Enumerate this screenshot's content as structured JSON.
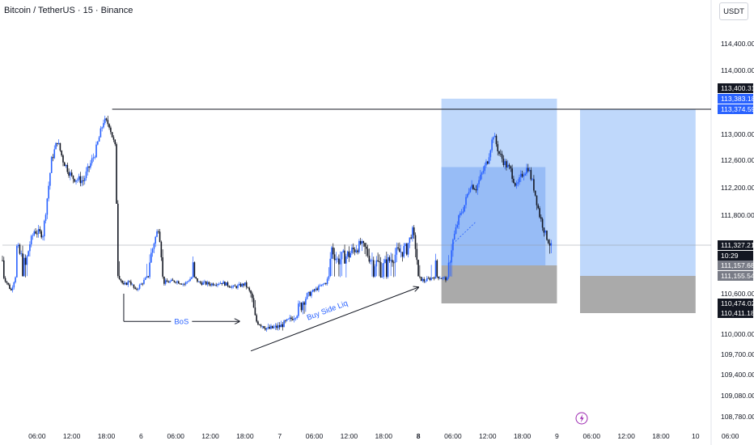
{
  "header": {
    "title": "Bitcoin / TetherUS · 15 · Binance",
    "unit_badge": "USDT"
  },
  "chart_data": {
    "type": "candlestick",
    "title": "Bitcoin / TetherUS · 15 · Binance",
    "y_unit": "USDT",
    "ylim": [
      108600,
      114700
    ],
    "y_ticks": [
      114400,
      114000,
      113000,
      112600,
      112200,
      111800,
      110600,
      110000,
      109700,
      109400,
      109080,
      108780
    ],
    "y_tick_labels": [
      "114,400.00",
      "114,000.00",
      "113,000.00",
      "112,600.00",
      "112,200.00",
      "111,800.00",
      "110,600.00",
      "110,000.00",
      "109,700.00",
      "109,400.00",
      "109,080.00",
      "108,780.00"
    ],
    "x_tick_labels": [
      "06:00",
      "12:00",
      "18:00",
      "6",
      "06:00",
      "12:00",
      "18:00",
      "7",
      "06:00",
      "12:00",
      "18:00",
      "8",
      "06:00",
      "12:00",
      "18:00",
      "9",
      "06:00",
      "12:00",
      "18:00",
      "10",
      "06:00"
    ],
    "x_tick_hours": [
      6,
      12,
      18,
      24,
      30,
      36,
      42,
      48,
      54,
      60,
      66,
      72,
      78,
      84,
      90,
      96,
      102,
      108,
      114,
      120,
      126
    ],
    "bold_ticks": [
      "8"
    ],
    "price_path": [
      [
        0,
        111200
      ],
      [
        1.5,
        110700
      ],
      [
        2.5,
        111300
      ],
      [
        4,
        111150
      ],
      [
        5.5,
        111550
      ],
      [
        7,
        111500
      ],
      [
        8.5,
        112600
      ],
      [
        9.5,
        112900
      ],
      [
        10.5,
        112600
      ],
      [
        12,
        112350
      ],
      [
        14,
        112300
      ],
      [
        16,
        112700
      ],
      [
        17.5,
        113200
      ],
      [
        18.5,
        113150
      ],
      [
        19.5,
        112800
      ],
      [
        20,
        111200
      ],
      [
        21,
        110850
      ],
      [
        22,
        111000
      ],
      [
        23,
        110700
      ],
      [
        24.5,
        111000
      ],
      [
        26,
        111300
      ],
      [
        27,
        111600
      ],
      [
        28,
        110950
      ],
      [
        30,
        111000
      ],
      [
        31.5,
        110900
      ],
      [
        33,
        111150
      ],
      [
        34,
        110950
      ],
      [
        36,
        110900
      ],
      [
        38,
        110950
      ],
      [
        40,
        110800
      ],
      [
        42,
        110900
      ],
      [
        43,
        110600
      ],
      [
        44,
        110250
      ],
      [
        46,
        110100
      ],
      [
        48,
        110150
      ],
      [
        50,
        110300
      ],
      [
        52,
        110500
      ],
      [
        54,
        110700
      ],
      [
        56,
        110950
      ],
      [
        57,
        111300
      ],
      [
        58,
        111200
      ],
      [
        60,
        111250
      ],
      [
        62,
        111350
      ],
      [
        64,
        111200
      ],
      [
        66,
        111150
      ],
      [
        68,
        111250
      ],
      [
        70,
        111300
      ],
      [
        71,
        111550
      ],
      [
        72,
        111100
      ],
      [
        73,
        111000
      ],
      [
        75,
        111150
      ],
      [
        77,
        111050
      ],
      [
        78,
        111400
      ],
      [
        79,
        111750
      ],
      [
        80,
        111950
      ],
      [
        81,
        112250
      ],
      [
        82,
        112200
      ],
      [
        83,
        112400
      ],
      [
        84,
        112600
      ],
      [
        85,
        113000
      ],
      [
        86,
        112700
      ],
      [
        87,
        112550
      ],
      [
        88,
        112450
      ],
      [
        89,
        112200
      ],
      [
        90,
        112400
      ],
      [
        91,
        112500
      ],
      [
        92,
        112200
      ],
      [
        93,
        111800
      ],
      [
        94,
        111500
      ],
      [
        95,
        111300
      ]
    ],
    "horizontal_lines": [
      {
        "price": 113374.59,
        "from_hour": 19
      },
      {
        "price": 111327.21,
        "from_hour": 0,
        "style": "thin"
      }
    ],
    "position_boxes": [
      {
        "from_hour": 76,
        "to_hour": 96,
        "entry": 111157.68,
        "target": 113383.18,
        "stop": 110474.02,
        "fill_target": "#bcd6fb",
        "fill_stop": "#a5a5a5"
      },
      {
        "from_hour": 100,
        "to_hour": 120,
        "entry": 111155.54,
        "target": 113374.59,
        "stop": 110411.18,
        "fill_target": "#bcd6fb",
        "fill_stop": "#a5a5a5"
      }
    ],
    "annotations": [
      {
        "text": "BoS",
        "type": "arrow",
        "from_hour": 21,
        "to_hour": 41,
        "price": 110250
      },
      {
        "text": "Buy Side Liq",
        "type": "arrow",
        "from_hour": 43,
        "to_hour": 72,
        "from_price": 109750,
        "to_price": 110800
      }
    ],
    "price_tags": [
      {
        "label": "113,400.31",
        "bg": "#131722"
      },
      {
        "label": "113,383.18",
        "bg": "#2962ff"
      },
      {
        "label": "113,374.59",
        "bg": "#2962ff"
      },
      {
        "label": "111,327.21",
        "bg": "#131722"
      },
      {
        "label": "10:29",
        "bg": "#131722"
      },
      {
        "label": "111,157.68",
        "bg": "#787b86"
      },
      {
        "label": "111,155.54",
        "bg": "#787b86"
      },
      {
        "label": "110,474.02",
        "bg": "#131722"
      },
      {
        "label": "110,411.18",
        "bg": "#131722"
      }
    ]
  }
}
